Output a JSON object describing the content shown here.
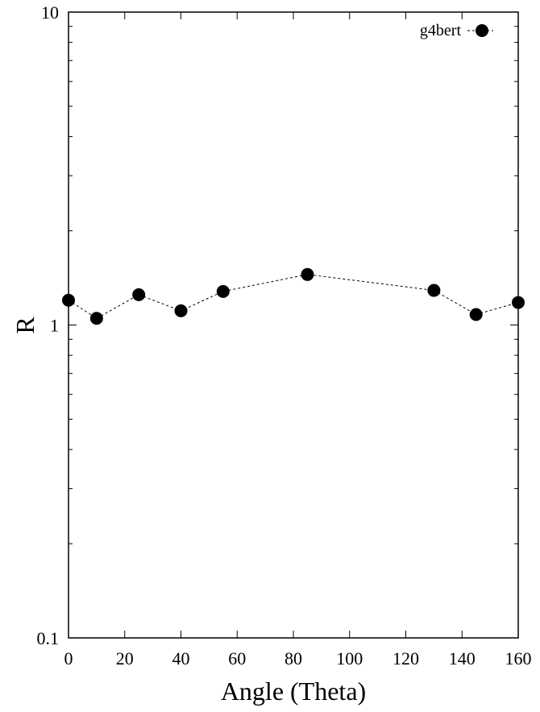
{
  "chart_data": {
    "type": "scatter",
    "title": "",
    "xlabel": "Angle (Theta)",
    "ylabel": "R",
    "xlim": [
      0,
      160
    ],
    "ylim": [
      0.1,
      10
    ],
    "yscale": "log",
    "grid": false,
    "legend_position": "top-right",
    "x_ticks": [
      0,
      20,
      40,
      60,
      80,
      100,
      120,
      140,
      160
    ],
    "x_tick_labels": [
      "0",
      "20",
      "40",
      "60",
      "80",
      "100",
      "120",
      "140",
      "160"
    ],
    "y_ticks": [
      0.1,
      1,
      10
    ],
    "y_tick_labels": [
      "0.1",
      "1",
      "10"
    ],
    "series": [
      {
        "name": "g4bert",
        "marker": "filled-circle",
        "line": "dashed",
        "color": "#000000",
        "x": [
          0,
          10,
          25,
          40,
          55,
          85,
          130,
          145,
          160
        ],
        "y": [
          1.2,
          1.05,
          1.25,
          1.11,
          1.28,
          1.45,
          1.29,
          1.08,
          1.18
        ]
      }
    ]
  }
}
